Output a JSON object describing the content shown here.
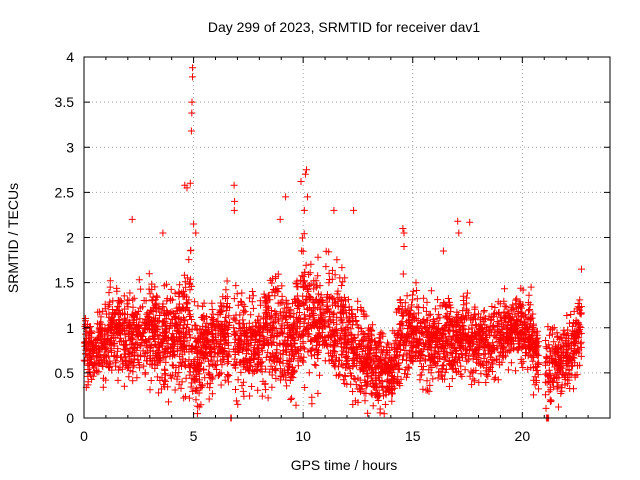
{
  "chart_data": {
    "type": "scatter",
    "title": "Day 299 of 2023, SRMTID for receiver dav1",
    "xlabel": "GPS time / hours",
    "ylabel": "SRMTID / TECUs",
    "xlim": [
      0,
      24
    ],
    "ylim": [
      0,
      4
    ],
    "xticks": [
      "0",
      "5",
      "10",
      "15",
      "20"
    ],
    "yticks": [
      "0",
      "0.5",
      "1",
      "1.5",
      "2",
      "2.5",
      "3",
      "3.5",
      "4"
    ],
    "grid": true,
    "marker": "+",
    "color": "#ff0000",
    "gaps_hours": [
      [
        6.65,
        6.82
      ],
      [
        20.75,
        21.05
      ]
    ],
    "x_end_hours": 22.7,
    "envelope": {
      "hours": [
        0,
        0.5,
        1,
        1.5,
        2,
        2.5,
        3,
        3.5,
        4,
        4.5,
        4.8,
        5,
        5.5,
        6,
        6.5,
        7,
        7.5,
        8,
        8.5,
        9,
        9.5,
        10,
        10.5,
        11,
        11.5,
        12,
        12.5,
        13,
        13.5,
        14,
        14.5,
        15,
        15.5,
        16,
        16.5,
        17,
        17.5,
        18,
        18.5,
        19,
        19.5,
        20,
        20.5,
        21,
        21.5,
        22,
        22.7
      ],
      "median_tecu": [
        0.8,
        0.75,
        0.85,
        1.0,
        0.9,
        0.85,
        1.0,
        0.85,
        0.9,
        0.95,
        1.1,
        0.6,
        0.75,
        0.8,
        0.9,
        0.8,
        0.85,
        0.8,
        1.0,
        0.85,
        0.8,
        1.3,
        1.1,
        1.0,
        1.05,
        0.85,
        0.75,
        0.65,
        0.55,
        0.45,
        0.9,
        0.95,
        0.85,
        0.8,
        0.9,
        0.85,
        0.9,
        0.85,
        0.8,
        0.95,
        1.0,
        1.0,
        0.8,
        0.5,
        0.6,
        0.65,
        1.0
      ],
      "spread_tecu": [
        0.3,
        0.35,
        0.45,
        0.45,
        0.5,
        0.45,
        0.5,
        0.5,
        0.55,
        0.55,
        0.7,
        0.55,
        0.45,
        0.45,
        0.5,
        0.45,
        0.45,
        0.45,
        0.55,
        0.5,
        0.5,
        0.7,
        0.6,
        0.55,
        0.55,
        0.5,
        0.45,
        0.45,
        0.4,
        0.3,
        0.45,
        0.4,
        0.4,
        0.4,
        0.4,
        0.4,
        0.4,
        0.4,
        0.35,
        0.35,
        0.35,
        0.35,
        0.4,
        0.4,
        0.35,
        0.35,
        0.4
      ]
    },
    "points_per_hour": 170,
    "peaks": [
      {
        "x": 4.95,
        "y": 3.88
      },
      {
        "x": 4.95,
        "y": 3.78
      },
      {
        "x": 4.93,
        "y": 3.5
      },
      {
        "x": 4.92,
        "y": 3.38
      },
      {
        "x": 4.9,
        "y": 3.18
      },
      {
        "x": 4.85,
        "y": 2.6
      },
      {
        "x": 4.6,
        "y": 2.58
      },
      {
        "x": 4.7,
        "y": 2.55
      },
      {
        "x": 6.85,
        "y": 2.58
      },
      {
        "x": 6.87,
        "y": 2.4
      },
      {
        "x": 6.86,
        "y": 2.3
      },
      {
        "x": 10.15,
        "y": 2.75
      },
      {
        "x": 10.1,
        "y": 2.7
      },
      {
        "x": 9.9,
        "y": 2.62
      },
      {
        "x": 10.2,
        "y": 2.45
      },
      {
        "x": 10.05,
        "y": 2.3
      },
      {
        "x": 9.2,
        "y": 2.45
      },
      {
        "x": 8.95,
        "y": 2.2
      },
      {
        "x": 2.2,
        "y": 2.2
      },
      {
        "x": 12.3,
        "y": 2.3
      },
      {
        "x": 11.4,
        "y": 2.3
      },
      {
        "x": 14.55,
        "y": 2.1
      },
      {
        "x": 14.6,
        "y": 2.05
      },
      {
        "x": 14.6,
        "y": 1.9
      },
      {
        "x": 17.05,
        "y": 2.18
      },
      {
        "x": 17.1,
        "y": 2.05
      },
      {
        "x": 17.6,
        "y": 2.17
      },
      {
        "x": 5.0,
        "y": 2.15
      },
      {
        "x": 5.1,
        "y": 2.05
      },
      {
        "x": 3.6,
        "y": 2.05
      },
      {
        "x": 16.4,
        "y": 1.85
      },
      {
        "x": 20.4,
        "y": 1.45
      },
      {
        "x": 22.7,
        "y": 1.65
      }
    ],
    "zeros": [
      {
        "x": 6.7,
        "y": 0.0
      },
      {
        "x": 6.72,
        "y": 0.0
      },
      {
        "x": 21.1,
        "y": 0.0
      },
      {
        "x": 21.15,
        "y": 0.0
      },
      {
        "x": 21.2,
        "y": 0.0
      }
    ]
  }
}
